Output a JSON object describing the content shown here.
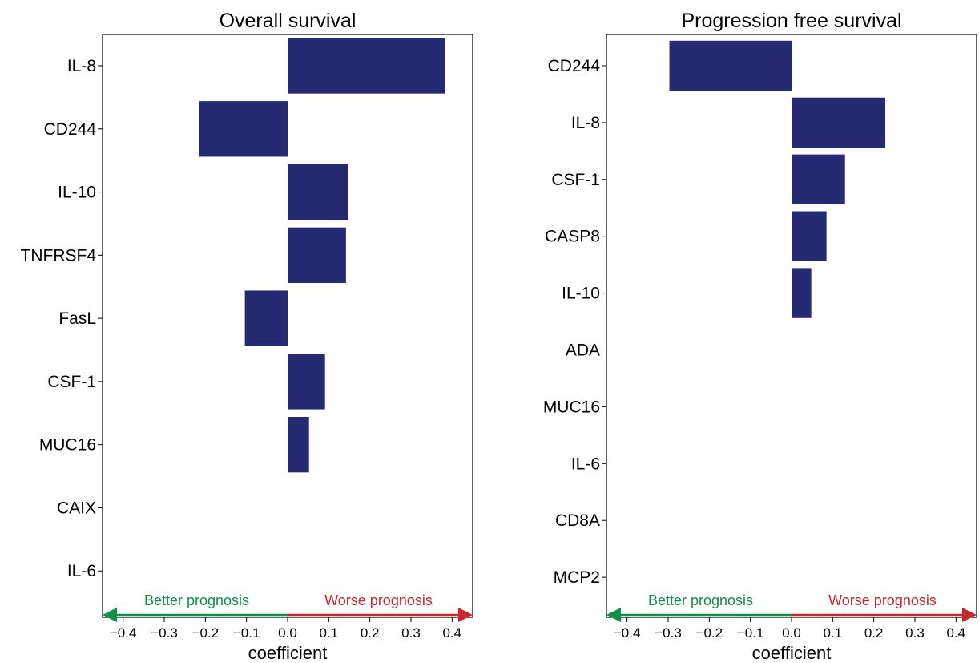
{
  "colors": {
    "bar": "#262a73",
    "better": "#0f8f47",
    "worse": "#c9272d",
    "axis": "#000000"
  },
  "chart_data": [
    {
      "type": "bar",
      "orientation": "horizontal",
      "title": "Overall survival",
      "xlabel": "coefficient",
      "ylabel": "",
      "categories": [
        "IL-8",
        "CD244",
        "IL-10",
        "TNFRSF4",
        "FasL",
        "CSF-1",
        "MUC16",
        "CAIX",
        "IL-6"
      ],
      "values": [
        0.383,
        -0.215,
        0.148,
        0.142,
        -0.104,
        0.091,
        0.052,
        0.0,
        0.0
      ],
      "xlim": [
        -0.45,
        0.45
      ],
      "xticks": [
        -0.4,
        -0.3,
        -0.2,
        -0.1,
        0.0,
        0.1,
        0.2,
        0.3,
        0.4
      ],
      "xtick_labels": [
        "−0.4",
        "−0.3",
        "−0.2",
        "−0.1",
        "0.0",
        "0.1",
        "0.2",
        "0.3",
        "0.4"
      ],
      "grid": false,
      "annotations": {
        "better": "Better prognosis",
        "worse": "Worse prognosis"
      }
    },
    {
      "type": "bar",
      "orientation": "horizontal",
      "title": "Progression free survival",
      "xlabel": "coefficient",
      "ylabel": "",
      "categories": [
        "CD244",
        "IL-8",
        "CSF-1",
        "CASP8",
        "IL-10",
        "ADA",
        "MUC16",
        "IL-6",
        "CD8A",
        "MCP2"
      ],
      "values": [
        -0.297,
        0.228,
        0.13,
        0.085,
        0.048,
        0.0,
        0.0,
        0.0,
        0.0,
        0.0
      ],
      "xlim": [
        -0.45,
        0.45
      ],
      "xticks": [
        -0.4,
        -0.3,
        -0.2,
        -0.1,
        0.0,
        0.1,
        0.2,
        0.3,
        0.4
      ],
      "xtick_labels": [
        "−0.4",
        "−0.3",
        "−0.2",
        "−0.1",
        "0.0",
        "0.1",
        "0.2",
        "0.3",
        "0.4"
      ],
      "grid": false,
      "annotations": {
        "better": "Better prognosis",
        "worse": "Worse prognosis"
      }
    }
  ]
}
